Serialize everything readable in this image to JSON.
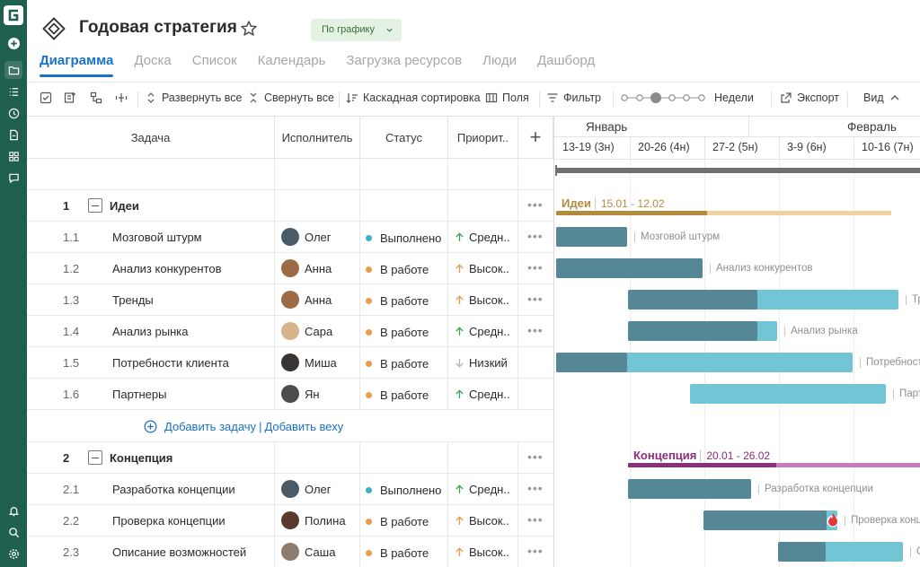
{
  "rail": {
    "logo": "G",
    "items": [
      "plus-icon",
      "folder-icon",
      "list-icon",
      "clock-icon",
      "document-icon",
      "grid-icon",
      "chat-icon"
    ],
    "bottom": [
      "bell-icon",
      "search-icon",
      "gear-icon"
    ]
  },
  "header": {
    "title": "Годовая стратегия",
    "status_label": "По графику"
  },
  "tabs": [
    {
      "label": "Диаграмма",
      "active": true
    },
    {
      "label": "Доска"
    },
    {
      "label": "Список"
    },
    {
      "label": "Календарь"
    },
    {
      "label": "Загрузка ресурсов"
    },
    {
      "label": "Люди"
    },
    {
      "label": "Дашборд"
    }
  ],
  "toolbar": {
    "expand_all": "Развернуть все",
    "collapse_all": "Свернуть все",
    "cascade_sort": "Каскадная сортировка",
    "fields": "Поля",
    "filter": "Фильтр",
    "zoom_label": "Недели",
    "export": "Экспорт",
    "view": "Вид"
  },
  "columns": {
    "task": "Задача",
    "assignee": "Исполнитель",
    "status": "Статус",
    "priority": "Приорит..",
    "add": "+"
  },
  "groups": [
    {
      "num": "1",
      "name": "Идеи",
      "dates": "15.01 - 12.02",
      "color": "#b38a3c",
      "progress": 0.45,
      "tasks": [
        {
          "num": "1.1",
          "name": "Мозговой штурм",
          "assignee": "Олег",
          "status": "Выполнено",
          "priority": "Средн..",
          "avatar": "#4a5a66",
          "label": "Мозговой штурм"
        },
        {
          "num": "1.2",
          "name": "Анализ конкурентов",
          "assignee": "Анна",
          "status": "В работе",
          "priority": "Высок..",
          "avatar": "#9c6b45",
          "label": "Анализ конкурентов"
        },
        {
          "num": "1.3",
          "name": "Тренды",
          "assignee": "Анна",
          "status": "В работе",
          "priority": "Высок..",
          "avatar": "#9c6b45",
          "label": "Тренды"
        },
        {
          "num": "1.4",
          "name": "Анализ рынка",
          "assignee": "Сара",
          "status": "В работе",
          "priority": "Средн..",
          "avatar": "#d6b48e",
          "label": "Анализ рынка"
        },
        {
          "num": "1.5",
          "name": "Потребности клиента",
          "assignee": "Миша",
          "status": "В работе",
          "priority": "Низкий",
          "avatar": "#3a3432",
          "label": "Потребности клиента"
        },
        {
          "num": "1.6",
          "name": "Партнеры",
          "assignee": "Ян",
          "status": "В работе",
          "priority": "Средн..",
          "avatar": "#4d4d4d",
          "label": "Партнеры"
        }
      ]
    },
    {
      "num": "2",
      "name": "Концепция",
      "dates": "20.01 - 26.02",
      "color": "#8a2f7a",
      "progress": 0.5,
      "tasks": [
        {
          "num": "2.1",
          "name": "Разработка концепции",
          "assignee": "Олег",
          "status": "Выполнено",
          "priority": "Средн..",
          "avatar": "#4a5a66",
          "label": "Разработка концепции"
        },
        {
          "num": "2.2",
          "name": "Проверка концепции",
          "assignee": "Полина",
          "status": "В работе",
          "priority": "Высок..",
          "avatar": "#5a3a2e",
          "label": "Проверка концепции"
        },
        {
          "num": "2.3",
          "name": "Описание возможностей",
          "assignee": "Саша",
          "status": "В работе",
          "priority": "Высок..",
          "avatar": "#8c7c70",
          "label": "Описание возможностей"
        }
      ]
    }
  ],
  "add_row": {
    "add_task": "Добавить задачу",
    "add_milestone": "Добавить веху"
  },
  "timeline": {
    "months": [
      "Январь",
      "Февраль"
    ],
    "weeks": [
      "13-19 (3н)",
      "20-26 (4н)",
      "27-2 (5н)",
      "3-9 (6н)",
      "10-16 (7н)"
    ]
  },
  "colors": {
    "accent": "#1a73c9",
    "done_dot": "#3fb0c9",
    "progress_dot": "#ee9b4a",
    "bar_dark": "#568797",
    "bar_light": "#72c5d4"
  }
}
